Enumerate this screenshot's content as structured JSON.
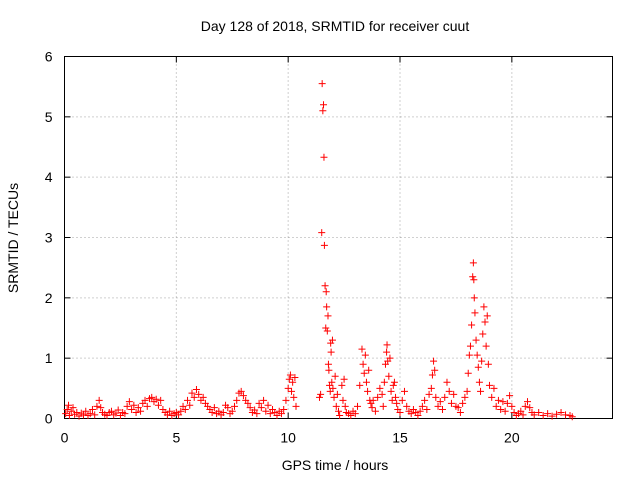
{
  "chart_data": {
    "type": "scatter",
    "title": "Day 128 of 2018, SRMTID for receiver cuut",
    "xlabel": "GPS time / hours",
    "ylabel": "SRMTID / TECUs",
    "xlim": [
      0,
      24.5
    ],
    "ylim": [
      0,
      6
    ],
    "xticks": [
      0,
      5,
      10,
      15,
      20
    ],
    "xtick_labels": [
      "0",
      "5",
      "10",
      "15",
      "20"
    ],
    "yticks": [
      0,
      1,
      2,
      3,
      4,
      5,
      6
    ],
    "ytick_labels": [
      "0",
      "1",
      "2",
      "3",
      "4",
      "5",
      "6"
    ],
    "grid": true,
    "marker": "+",
    "series": [
      {
        "name": "SRMTID",
        "color": "#ff0000",
        "points": [
          [
            0.05,
            0.08
          ],
          [
            0.12,
            0.15
          ],
          [
            0.18,
            0.22
          ],
          [
            0.22,
            0.05
          ],
          [
            0.3,
            0.12
          ],
          [
            0.38,
            0.18
          ],
          [
            0.45,
            0.07
          ],
          [
            0.55,
            0.1
          ],
          [
            0.65,
            0.04
          ],
          [
            0.75,
            0.09
          ],
          [
            0.85,
            0.06
          ],
          [
            0.95,
            0.12
          ],
          [
            1.05,
            0.05
          ],
          [
            1.15,
            0.08
          ],
          [
            1.25,
            0.15
          ],
          [
            1.35,
            0.06
          ],
          [
            1.45,
            0.2
          ],
          [
            1.55,
            0.3
          ],
          [
            1.62,
            0.18
          ],
          [
            1.7,
            0.1
          ],
          [
            1.8,
            0.07
          ],
          [
            1.9,
            0.05
          ],
          [
            2.0,
            0.1
          ],
          [
            2.1,
            0.12
          ],
          [
            2.2,
            0.06
          ],
          [
            2.3,
            0.09
          ],
          [
            2.4,
            0.14
          ],
          [
            2.5,
            0.05
          ],
          [
            2.6,
            0.1
          ],
          [
            2.7,
            0.08
          ],
          [
            2.8,
            0.2
          ],
          [
            2.9,
            0.28
          ],
          [
            3.0,
            0.15
          ],
          [
            3.1,
            0.22
          ],
          [
            3.2,
            0.1
          ],
          [
            3.3,
            0.18
          ],
          [
            3.4,
            0.12
          ],
          [
            3.5,
            0.25
          ],
          [
            3.6,
            0.3
          ],
          [
            3.7,
            0.2
          ],
          [
            3.8,
            0.33
          ],
          [
            3.9,
            0.35
          ],
          [
            4.0,
            0.28
          ],
          [
            4.1,
            0.32
          ],
          [
            4.2,
            0.22
          ],
          [
            4.3,
            0.3
          ],
          [
            4.4,
            0.15
          ],
          [
            4.5,
            0.1
          ],
          [
            4.6,
            0.06
          ],
          [
            4.7,
            0.12
          ],
          [
            4.8,
            0.05
          ],
          [
            4.9,
            0.08
          ],
          [
            5.0,
            0.1
          ],
          [
            5.1,
            0.06
          ],
          [
            5.2,
            0.12
          ],
          [
            5.3,
            0.2
          ],
          [
            5.4,
            0.15
          ],
          [
            5.5,
            0.3
          ],
          [
            5.6,
            0.22
          ],
          [
            5.7,
            0.42
          ],
          [
            5.8,
            0.35
          ],
          [
            5.9,
            0.48
          ],
          [
            6.0,
            0.4
          ],
          [
            6.1,
            0.3
          ],
          [
            6.2,
            0.35
          ],
          [
            6.3,
            0.25
          ],
          [
            6.4,
            0.2
          ],
          [
            6.5,
            0.15
          ],
          [
            6.6,
            0.1
          ],
          [
            6.7,
            0.18
          ],
          [
            6.8,
            0.08
          ],
          [
            6.9,
            0.12
          ],
          [
            7.0,
            0.06
          ],
          [
            7.1,
            0.1
          ],
          [
            7.2,
            0.22
          ],
          [
            7.3,
            0.18
          ],
          [
            7.4,
            0.08
          ],
          [
            7.5,
            0.12
          ],
          [
            7.6,
            0.2
          ],
          [
            7.7,
            0.3
          ],
          [
            7.8,
            0.42
          ],
          [
            7.9,
            0.45
          ],
          [
            8.0,
            0.38
          ],
          [
            8.1,
            0.3
          ],
          [
            8.2,
            0.25
          ],
          [
            8.3,
            0.18
          ],
          [
            8.4,
            0.1
          ],
          [
            8.5,
            0.14
          ],
          [
            8.6,
            0.08
          ],
          [
            8.7,
            0.25
          ],
          [
            8.8,
            0.18
          ],
          [
            8.9,
            0.3
          ],
          [
            9.0,
            0.12
          ],
          [
            9.1,
            0.22
          ],
          [
            9.2,
            0.08
          ],
          [
            9.3,
            0.15
          ],
          [
            9.4,
            0.1
          ],
          [
            9.5,
            0.05
          ],
          [
            9.6,
            0.12
          ],
          [
            9.7,
            0.08
          ],
          [
            9.8,
            0.15
          ],
          [
            9.9,
            0.3
          ],
          [
            10.0,
            0.5
          ],
          [
            10.05,
            0.65
          ],
          [
            10.1,
            0.72
          ],
          [
            10.15,
            0.45
          ],
          [
            10.2,
            0.6
          ],
          [
            10.25,
            0.35
          ],
          [
            10.3,
            0.68
          ],
          [
            10.35,
            0.2
          ],
          [
            11.4,
            0.35
          ],
          [
            11.45,
            0.4
          ],
          [
            11.5,
            3.08
          ],
          [
            11.52,
            5.55
          ],
          [
            11.55,
            5.1
          ],
          [
            11.58,
            5.2
          ],
          [
            11.6,
            4.33
          ],
          [
            11.62,
            2.87
          ],
          [
            11.65,
            2.2
          ],
          [
            11.68,
            1.5
          ],
          [
            11.7,
            2.1
          ],
          [
            11.72,
            1.85
          ],
          [
            11.75,
            1.45
          ],
          [
            11.78,
            1.7
          ],
          [
            11.8,
            0.9
          ],
          [
            11.82,
            0.8
          ],
          [
            11.85,
            0.55
          ],
          [
            11.88,
            0.45
          ],
          [
            11.9,
            1.25
          ],
          [
            11.92,
            1.1
          ],
          [
            11.95,
            0.6
          ],
          [
            11.98,
            1.3
          ],
          [
            12.0,
            0.5
          ],
          [
            12.05,
            0.35
          ],
          [
            12.1,
            0.7
          ],
          [
            12.15,
            0.2
          ],
          [
            12.2,
            0.4
          ],
          [
            12.25,
            0.12
          ],
          [
            12.3,
            0.05
          ],
          [
            12.4,
            0.55
          ],
          [
            12.45,
            0.3
          ],
          [
            12.5,
            0.65
          ],
          [
            12.55,
            0.2
          ],
          [
            12.6,
            0.1
          ],
          [
            12.7,
            0.08
          ],
          [
            12.8,
            0.05
          ],
          [
            12.9,
            0.12
          ],
          [
            13.0,
            0.08
          ],
          [
            13.1,
            0.2
          ],
          [
            13.2,
            0.55
          ],
          [
            13.3,
            1.15
          ],
          [
            13.35,
            0.9
          ],
          [
            13.4,
            0.75
          ],
          [
            13.45,
            1.05
          ],
          [
            13.5,
            0.6
          ],
          [
            13.55,
            0.45
          ],
          [
            13.6,
            0.8
          ],
          [
            13.65,
            0.3
          ],
          [
            13.7,
            0.25
          ],
          [
            13.75,
            0.18
          ],
          [
            13.8,
            0.3
          ],
          [
            13.9,
            0.12
          ],
          [
            14.0,
            0.35
          ],
          [
            14.1,
            0.5
          ],
          [
            14.2,
            0.4
          ],
          [
            14.25,
            0.2
          ],
          [
            14.3,
            0.6
          ],
          [
            14.35,
            0.9
          ],
          [
            14.4,
            1.1
          ],
          [
            14.42,
            1.22
          ],
          [
            14.45,
            0.95
          ],
          [
            14.5,
            0.7
          ],
          [
            14.55,
            1.0
          ],
          [
            14.6,
            0.45
          ],
          [
            14.65,
            0.3
          ],
          [
            14.7,
            0.55
          ],
          [
            14.75,
            0.6
          ],
          [
            14.8,
            0.35
          ],
          [
            14.85,
            0.25
          ],
          [
            14.9,
            0.15
          ],
          [
            15.0,
            0.1
          ],
          [
            15.1,
            0.3
          ],
          [
            15.2,
            0.45
          ],
          [
            15.3,
            0.2
          ],
          [
            15.4,
            0.12
          ],
          [
            15.5,
            0.08
          ],
          [
            15.6,
            0.15
          ],
          [
            15.7,
            0.1
          ],
          [
            15.8,
            0.05
          ],
          [
            15.9,
            0.12
          ],
          [
            16.0,
            0.2
          ],
          [
            16.1,
            0.3
          ],
          [
            16.2,
            0.15
          ],
          [
            16.3,
            0.4
          ],
          [
            16.4,
            0.5
          ],
          [
            16.45,
            0.72
          ],
          [
            16.5,
            0.95
          ],
          [
            16.55,
            0.8
          ],
          [
            16.6,
            0.35
          ],
          [
            16.7,
            0.2
          ],
          [
            16.8,
            0.28
          ],
          [
            16.9,
            0.15
          ],
          [
            17.0,
            0.35
          ],
          [
            17.1,
            0.6
          ],
          [
            17.2,
            0.45
          ],
          [
            17.3,
            0.25
          ],
          [
            17.4,
            0.4
          ],
          [
            17.5,
            0.2
          ],
          [
            17.6,
            0.18
          ],
          [
            17.7,
            0.1
          ],
          [
            17.8,
            0.25
          ],
          [
            17.9,
            0.35
          ],
          [
            18.0,
            0.45
          ],
          [
            18.05,
            0.75
          ],
          [
            18.1,
            1.05
          ],
          [
            18.15,
            1.2
          ],
          [
            18.2,
            1.55
          ],
          [
            18.25,
            2.35
          ],
          [
            18.28,
            2.58
          ],
          [
            18.3,
            2.3
          ],
          [
            18.32,
            2.0
          ],
          [
            18.35,
            1.75
          ],
          [
            18.4,
            1.3
          ],
          [
            18.45,
            1.05
          ],
          [
            18.5,
            0.85
          ],
          [
            18.55,
            0.6
          ],
          [
            18.6,
            0.45
          ],
          [
            18.65,
            0.95
          ],
          [
            18.7,
            1.4
          ],
          [
            18.75,
            1.85
          ],
          [
            18.8,
            1.6
          ],
          [
            18.85,
            1.2
          ],
          [
            18.9,
            1.7
          ],
          [
            18.95,
            0.9
          ],
          [
            19.0,
            0.55
          ],
          [
            19.1,
            0.35
          ],
          [
            19.2,
            0.5
          ],
          [
            19.3,
            0.2
          ],
          [
            19.4,
            0.3
          ],
          [
            19.5,
            0.15
          ],
          [
            19.6,
            0.28
          ],
          [
            19.7,
            0.12
          ],
          [
            19.8,
            0.25
          ],
          [
            19.9,
            0.38
          ],
          [
            20.0,
            0.2
          ],
          [
            20.1,
            0.1
          ],
          [
            20.2,
            0.05
          ],
          [
            20.3,
            0.08
          ],
          [
            20.4,
            0.12
          ],
          [
            20.5,
            0.06
          ],
          [
            20.6,
            0.2
          ],
          [
            20.7,
            0.28
          ],
          [
            20.8,
            0.18
          ],
          [
            20.9,
            0.1
          ],
          [
            21.0,
            0.06
          ],
          [
            21.2,
            0.1
          ],
          [
            21.4,
            0.05
          ],
          [
            21.6,
            0.08
          ],
          [
            21.8,
            0.04
          ],
          [
            22.0,
            0.07
          ],
          [
            22.2,
            0.1
          ],
          [
            22.4,
            0.06
          ],
          [
            22.6,
            0.05
          ],
          [
            22.7,
            0.03
          ]
        ]
      }
    ]
  }
}
